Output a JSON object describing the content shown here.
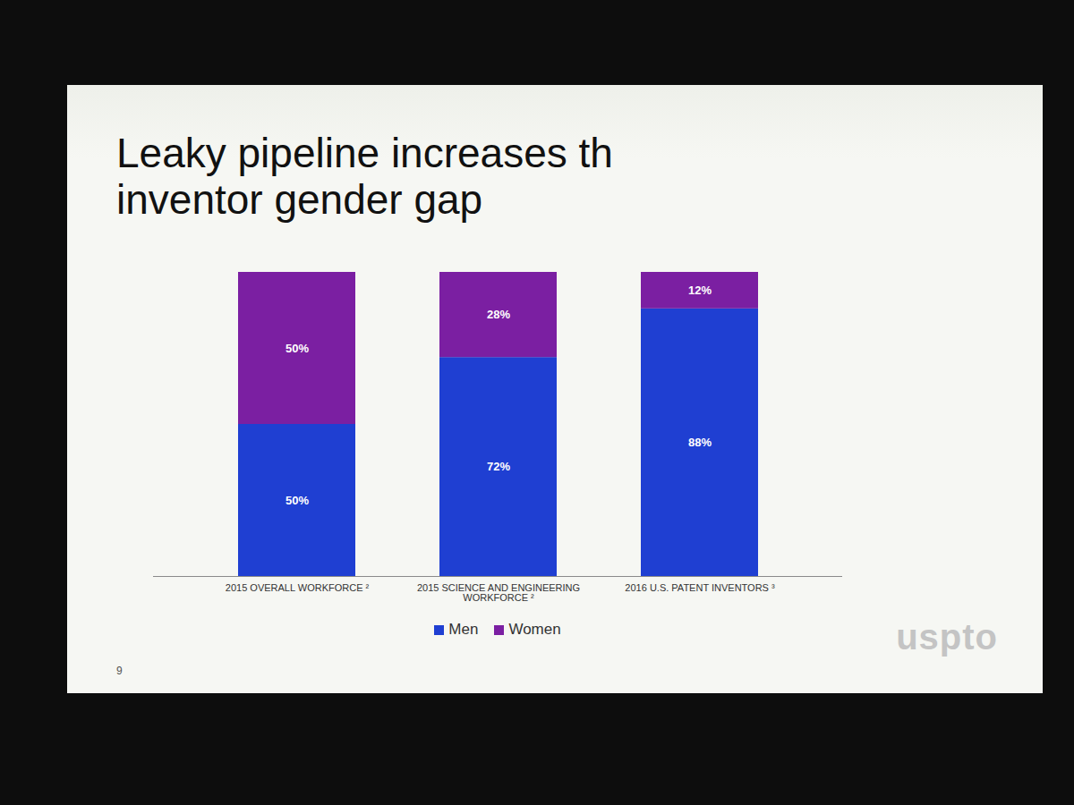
{
  "chart_data": {
    "type": "bar",
    "title": "Leaky pipeline increases th inventor gender gap",
    "categories": [
      "2015 OVERALL WORKFORCE ²",
      "2015 SCIENCE AND ENGINEERING WORKFORCE ²",
      "2016 U.S. PATENT INVENTORS ³"
    ],
    "series": [
      {
        "name": "Men",
        "color": "#1f3fd2",
        "values": [
          50,
          72,
          88
        ],
        "value_labels": [
          "50%",
          "72%",
          "88%"
        ]
      },
      {
        "name": "Women",
        "color": "#7b1fa2",
        "values": [
          50,
          28,
          12
        ],
        "value_labels": [
          "50%",
          "28%",
          "12%"
        ]
      }
    ],
    "ylim": [
      0,
      100
    ],
    "stacked": true,
    "data_labels": true,
    "tick_labels": "x",
    "grid": false,
    "legend": "bottom",
    "annotations": [
      "9",
      "uspto"
    ]
  }
}
